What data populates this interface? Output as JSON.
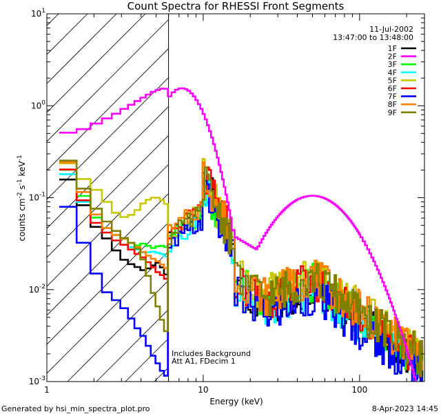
{
  "chart_data": {
    "type": "line",
    "title": "Count Spectra for RHESSI Front Segments",
    "xlabel": "Energy (keV)",
    "ylabel_base": "counts cm",
    "ylabel_exp1": "-2",
    "ylabel_mid": " s",
    "ylabel_exp2": "-1",
    "ylabel_end": " keV",
    "ylabel_exp3": "-1",
    "xscale": "log",
    "yscale": "log",
    "xlim": [
      1,
      260
    ],
    "ylim": [
      0.001,
      10
    ],
    "x_tick_labels": [
      {
        "value": 1,
        "label": "1"
      },
      {
        "value": 10,
        "label": "10"
      },
      {
        "value": 100,
        "label": "100"
      }
    ],
    "y_tick_labels": [
      {
        "value": 10,
        "base": "10",
        "exp": "1"
      },
      {
        "value": 1,
        "base": "10",
        "exp": "0"
      },
      {
        "value": 0.1,
        "base": "10",
        "exp": "-1"
      },
      {
        "value": 0.01,
        "base": "10",
        "exp": "-2"
      },
      {
        "value": 0.001,
        "base": "10",
        "exp": "-3"
      }
    ],
    "date": "11-Jul-2002",
    "time_range": "13:47:00 to 13:48:00",
    "legend_position": "top-right",
    "hatched_region_max_energy": 6,
    "annotations": [
      "Includes Background",
      "Att A1, FDecim 1"
    ],
    "series": [
      {
        "name": "1F",
        "color": "#000000",
        "low": [
          0.2,
          0.12,
          0.055,
          0.04,
          0.028,
          0.02,
          0.018,
          0.016,
          0.018,
          0.02,
          0.016,
          0.013
        ],
        "hump": 1.0,
        "tail": 1.0
      },
      {
        "name": "2F",
        "color": "#ff00ff",
        "low": [
          0.5,
          0.52,
          0.6,
          0.7,
          0.8,
          0.95,
          1.1,
          1.25,
          1.4,
          1.5,
          1.55,
          1.5
        ],
        "hump": 0,
        "tail": 0
      },
      {
        "name": "3F",
        "color": "#00ff00",
        "low": [
          0.26,
          0.15,
          0.07,
          0.05,
          0.04,
          0.035,
          0.03,
          0.032,
          0.028,
          0.03,
          0.03,
          0.028
        ],
        "hump": 0.95,
        "tail": 1.1
      },
      {
        "name": "4F",
        "color": "#00ffff",
        "low": [
          0.24,
          0.13,
          0.06,
          0.045,
          0.035,
          0.03,
          0.028,
          0.025,
          0.026,
          0.025,
          0.024,
          0.022
        ],
        "hump": 0.9,
        "tail": 0.95
      },
      {
        "name": "5F",
        "color": "#c8c800",
        "low": [
          0.3,
          0.18,
          0.14,
          0.1,
          0.07,
          0.06,
          0.07,
          0.09,
          0.1,
          0.1,
          0.09,
          0.08
        ],
        "hump": 1.05,
        "tail": 1.4
      },
      {
        "name": "6F",
        "color": "#ff0000",
        "low": [
          0.28,
          0.14,
          0.06,
          0.045,
          0.035,
          0.03,
          0.025,
          0.022,
          0.018,
          0.015,
          0.014,
          0.012
        ],
        "hump": 1.1,
        "tail": 1.15
      },
      {
        "name": "7F",
        "color": "#0000ff",
        "low": [
          0.12,
          0.05,
          0.02,
          0.01,
          0.008,
          0.006,
          0.004,
          0.003,
          0.002,
          0.0015,
          0.0012,
          0.0011
        ],
        "hump": 0.8,
        "tail": 0.8
      },
      {
        "name": "8F",
        "color": "#ff8000",
        "low": [
          0.35,
          0.16,
          0.08,
          0.05,
          0.04,
          0.035,
          0.03,
          0.025,
          0.022,
          0.02,
          0.018,
          0.016
        ],
        "hump": 1.15,
        "tail": 1.3
      },
      {
        "name": "9F",
        "color": "#808000",
        "low": [
          0.36,
          0.17,
          0.09,
          0.06,
          0.045,
          0.035,
          0.03,
          0.02,
          0.01,
          0.006,
          0.004,
          0.003
        ],
        "hump": 1.0,
        "tail": 1.25
      }
    ]
  },
  "footer": {
    "generated_by": "Generated by hsi_min_spectra_plot.pro",
    "timestamp": "8-Apr-2023 14:45"
  }
}
